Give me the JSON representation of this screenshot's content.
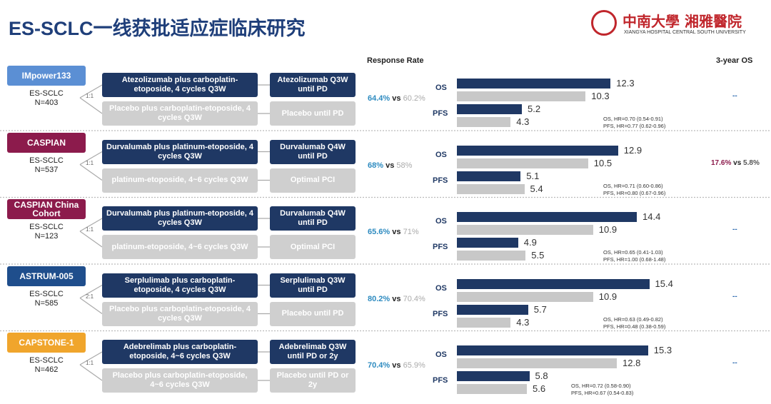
{
  "header": {
    "title": "ES-SCLC一线获批适应症临床研究",
    "logo": "中南大學 湘雅醫院",
    "logo_sub": "XIANGYA HOSPITAL CENTRAL SOUTH UNIVERSITY"
  },
  "columns": {
    "response_rate": "Response Rate",
    "three_year_os": "3-year OS"
  },
  "labels": {
    "os": "OS",
    "pfs": "PFS",
    "vs": "vs"
  },
  "trials": [
    {
      "name": "IMpower133",
      "color": "#5b8fd4",
      "population": "ES-SCLC",
      "n": "N=403",
      "ratio": "1:1",
      "experimental": {
        "induction": "Atezolizumab plus carboplatin-etoposide, 4 cycles Q3W",
        "maintenance": "Atezolizumab Q3W until PD"
      },
      "control": {
        "induction": "Placebo plus carboplatin-etoposide, 4 cycles Q3W",
        "maintenance": "Placebo until PD"
      },
      "response_rate": [
        "64.4%",
        "60.2%"
      ],
      "os": [
        12.3,
        10.3
      ],
      "pfs": [
        5.2,
        4.3
      ],
      "hr": [
        "OS, HR=0.70 (0.54-0.91)",
        "PFS, HR=0.77 (0.62-0.96)"
      ],
      "three_year_os": [
        "--"
      ]
    },
    {
      "name": "CASPIAN",
      "color": "#8c1b4c",
      "population": "ES-SCLC",
      "n": "N=537",
      "ratio": "1:1",
      "experimental": {
        "induction": "Durvalumab plus platinum-etoposide, 4 cycles Q3W",
        "maintenance": "Durvalumab Q4W until PD"
      },
      "control": {
        "induction": "platinum-etoposide, 4~6 cycles Q3W",
        "maintenance": "Optimal PCI"
      },
      "response_rate": [
        "68%",
        "58%"
      ],
      "os": [
        12.9,
        10.5
      ],
      "pfs": [
        5.1,
        5.4
      ],
      "hr": [
        "OS, HR=0.71 (0.60-0.86)",
        "PFS, HR=0.80 (0.67-0.96)"
      ],
      "three_year_os": [
        "17.6%",
        "5.8%"
      ]
    },
    {
      "name": "CASPIAN China Cohort",
      "color": "#8c1b4c",
      "population": "ES-SCLC",
      "n": "N=123",
      "ratio": "1:1",
      "experimental": {
        "induction": "Durvalumab plus platinum-etoposide, 4 cycles Q3W",
        "maintenance": "Durvalumab Q4W until PD"
      },
      "control": {
        "induction": "platinum-etoposide, 4~6 cycles Q3W",
        "maintenance": "Optimal PCI"
      },
      "response_rate": [
        "65.6%",
        "71%"
      ],
      "os": [
        14.4,
        10.9
      ],
      "pfs": [
        4.9,
        5.5
      ],
      "hr": [
        "OS, HR=0.65 (0.41-1.03)",
        "PFS, HR=1.00 (0.68-1.48)"
      ],
      "three_year_os": [
        "--"
      ]
    },
    {
      "name": "ASTRUM-005",
      "color": "#1f4e8c",
      "population": "ES-SCLC",
      "n": "N=585",
      "ratio": "2:1",
      "experimental": {
        "induction": "Serplulimab plus carboplatin-etoposide, 4 cycles Q3W",
        "maintenance": "Serplulimab Q3W until PD"
      },
      "control": {
        "induction": "Placebo plus carboplatin-etoposide, 4 cycles Q3W",
        "maintenance": "Placebo until PD"
      },
      "response_rate": [
        "80.2%",
        "70.4%"
      ],
      "os": [
        15.4,
        10.9
      ],
      "pfs": [
        5.7,
        4.3
      ],
      "hr": [
        "OS, HR=0.63 (0.49-0.82)",
        "PFS, HR=0.48 (0.38-0.59)"
      ],
      "three_year_os": [
        "--"
      ]
    },
    {
      "name": "CAPSTONE-1",
      "color": "#f0a52c",
      "population": "ES-SCLC",
      "n": "N=462",
      "ratio": "1:1",
      "experimental": {
        "induction": "Adebrelimab plus carboplatin-etoposide, 4~6 cycles Q3W",
        "maintenance": "Adebrelimab Q3W until PD or 2y"
      },
      "control": {
        "induction": "Placebo plus carboplatin-etoposide, 4~6 cycles Q3W",
        "maintenance": "Placebo until PD or 2y"
      },
      "response_rate": [
        "70.4%",
        "65.9%"
      ],
      "os": [
        15.3,
        12.8
      ],
      "pfs": [
        5.8,
        5.6
      ],
      "hr": [
        "OS, HR=0.72 (0.58-0.90)",
        "PFS, HR=0.67 (0.54-0.83)"
      ],
      "three_year_os": [
        "--"
      ]
    }
  ]
}
